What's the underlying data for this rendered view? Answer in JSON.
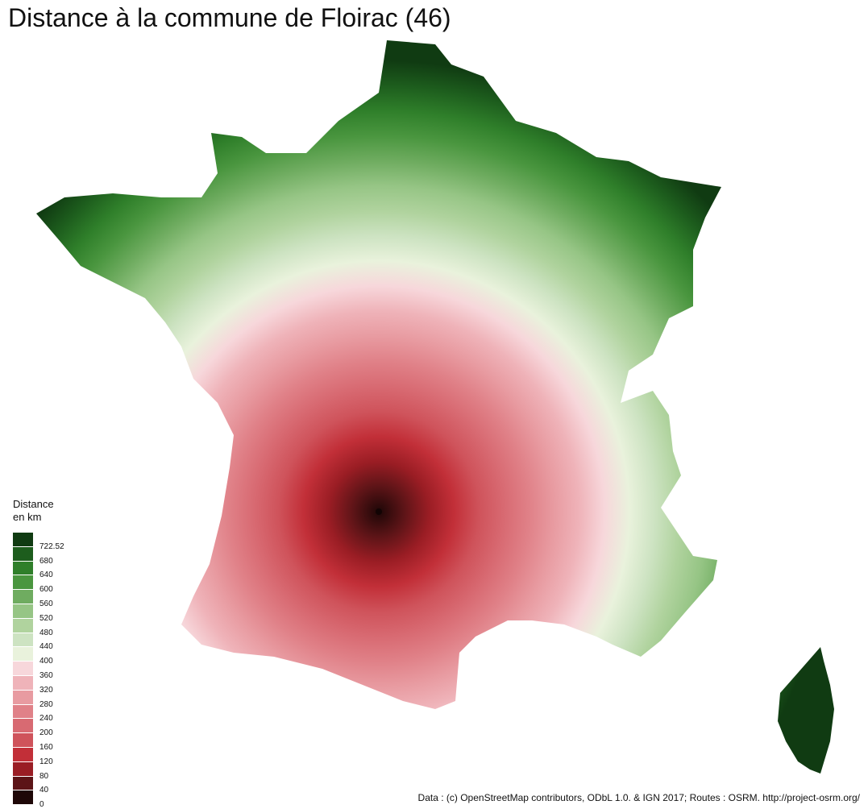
{
  "title": "Distance à la commune de Floirac (46)",
  "legend": {
    "title_line1": "Distance",
    "title_line2": "en km",
    "breaks": [
      "0",
      "40",
      "80",
      "120",
      "160",
      "200",
      "240",
      "280",
      "320",
      "360",
      "400",
      "440",
      "480",
      "520",
      "560",
      "600",
      "640",
      "680",
      "722.52"
    ],
    "colors": [
      "#1e0707",
      "#5c1417",
      "#9a1d24",
      "#c22f38",
      "#cf535b",
      "#d86a72",
      "#e08188",
      "#e89ba1",
      "#efb3b9",
      "#f7d7db",
      "#e9f2dc",
      "#cde3c2",
      "#b0d39e",
      "#96c585",
      "#6fac60",
      "#4a963f",
      "#2f7f2a",
      "#1d5d1d",
      "#103b12"
    ]
  },
  "map": {
    "origin": "Floirac (46)",
    "islands": [
      "France métropolitaine",
      "Corse"
    ]
  },
  "source": "Data : (c) OpenStreetMap contributors, ODbL 1.0. & IGN 2017; Routes : OSRM. http://project-osrm.org/"
}
